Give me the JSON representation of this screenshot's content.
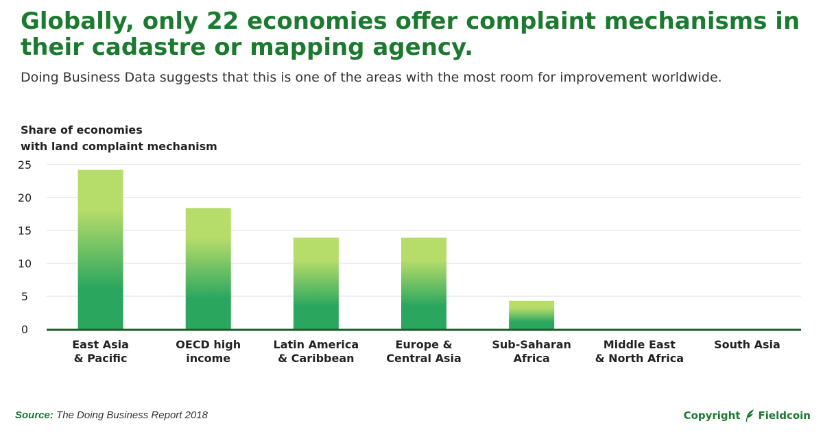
{
  "header": {
    "title": "Globally, only 22 economies offer complaint mechanisms in their cadastre or mapping agency.",
    "subtitle": "Doing Business Data suggests that this is one of the areas with the most room for improvement worldwide."
  },
  "footer": {
    "source_label": "Source:",
    "source_text": "The Doing Business Report 2018",
    "copyright_label": "Copyright",
    "brand_name": "Fieldcoin"
  },
  "colors": {
    "brand_green": "#1b7a2f",
    "bar_top": "#b6dc6a",
    "bar_bottom": "#2aa65f",
    "axis": "#1b5e2b",
    "grid": "#dddddd"
  },
  "chart_data": {
    "type": "bar",
    "title": "Globally, only 22 economies offer complaint mechanisms in their cadastre or mapping agency.",
    "subtitle": "Doing Business Data suggests that this is one of the areas with the most room for improvement worldwide.",
    "ylabel_lines": [
      "Share of economies",
      "with land complaint mechanism"
    ],
    "xlabel": "",
    "categories": [
      [
        "East Asia",
        "& Pacific"
      ],
      [
        "OECD high",
        "income"
      ],
      [
        "Latin America",
        "& Caribbean"
      ],
      [
        "Europe &",
        "Central Asia"
      ],
      [
        "Sub-Saharan",
        "Africa"
      ],
      [
        "Middle East",
        "& North Africa"
      ],
      [
        "South Asia"
      ]
    ],
    "values": [
      24.2,
      18.4,
      13.9,
      13.9,
      4.3,
      0,
      0
    ],
    "ylim": [
      0,
      25
    ],
    "yticks": [
      0,
      5,
      10,
      15,
      20,
      25
    ],
    "grid": true,
    "legend": "none"
  }
}
